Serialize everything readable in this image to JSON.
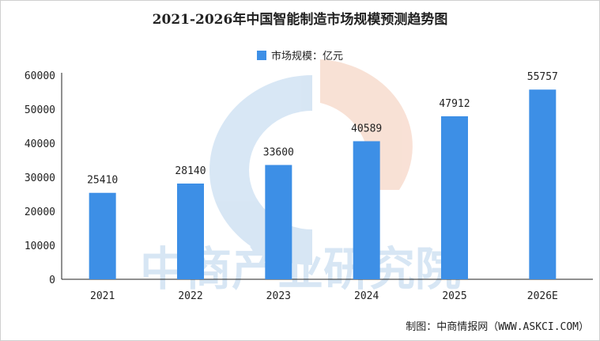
{
  "title": "2021-2026年中国智能制造市场规模预测趋势图",
  "legend_label": "市场规模：亿元",
  "source": "制图：中商情报网（WWW.ASKCI.COM）",
  "watermark": "中商产业研究院",
  "colors": {
    "bar": "#3d8fe6",
    "watermark_blue": "#b8d3ec",
    "watermark_orange": "#f4c9b4"
  },
  "chart_data": {
    "type": "bar",
    "title": "2021-2026年中国智能制造市场规模预测趋势图",
    "categories": [
      "2021",
      "2022",
      "2023",
      "2024",
      "2025",
      "2026E"
    ],
    "series": [
      {
        "name": "市场规模：亿元",
        "values": [
          25410,
          28140,
          33600,
          40589,
          47912,
          55757
        ]
      }
    ],
    "data_labels": [
      "25410",
      "28140",
      "33600",
      "40589",
      "47912",
      "55757"
    ],
    "yticks": [
      0,
      10000,
      20000,
      30000,
      40000,
      50000,
      60000
    ],
    "ylim": [
      0,
      60000
    ],
    "grid": false,
    "legend": "top-center"
  }
}
